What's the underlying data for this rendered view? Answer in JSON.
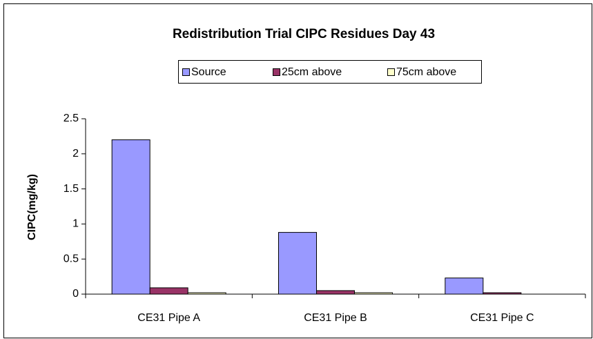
{
  "chart_data": {
    "type": "bar",
    "title": "Redistribution Trial CIPC Residues Day 43",
    "y_label": "CIPC(mg/kg)",
    "categories": [
      "CE31 Pipe A",
      "CE31 Pipe B",
      "CE31 Pipe C"
    ],
    "series": [
      {
        "name": "Source",
        "color": "#9999ff",
        "values": [
          2.2,
          0.88,
          0.23
        ]
      },
      {
        "name": "25cm above",
        "color": "#993366",
        "values": [
          0.09,
          0.05,
          0.02
        ]
      },
      {
        "name": "75cm above",
        "color": "#ffffcc",
        "values": [
          0.02,
          0.02,
          0
        ]
      }
    ],
    "ylim": [
      0,
      2.5
    ],
    "yticks": [
      0,
      0.5,
      1,
      1.5,
      2,
      2.5
    ],
    "grid": false,
    "legend": "top"
  }
}
